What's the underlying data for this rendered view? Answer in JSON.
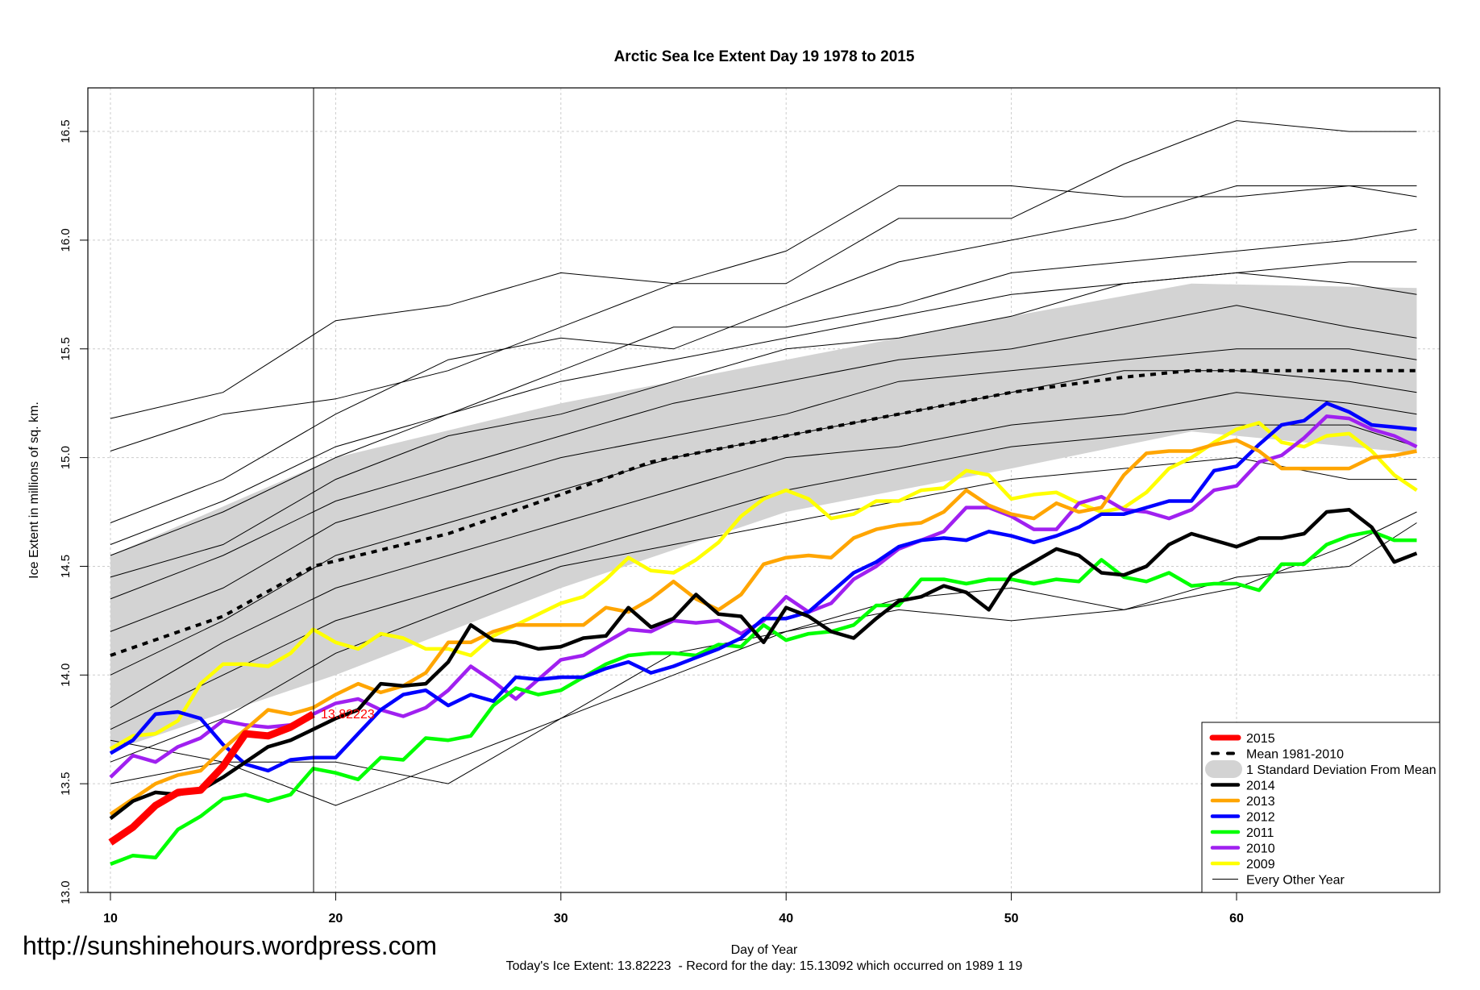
{
  "chart_data": {
    "type": "line",
    "title": "Arctic Sea Ice Extent Day 19 1978 to 2015",
    "xlabel": "Day of Year",
    "ylabel": "Ice Extent in millions of sq. km.",
    "subtitle": "Today's Ice Extent: 13.82223  - Record for the day: 15.13092 which occurred on 1989 1 19",
    "watermark": "http://sunshinehours.wordpress.com",
    "xlim": [
      9,
      69
    ],
    "ylim": [
      13.0,
      16.7
    ],
    "x_ticks": [
      "10",
      "20",
      "30",
      "40",
      "50",
      "60"
    ],
    "y_ticks": [
      "13.0",
      "13.5",
      "14.0",
      "14.5",
      "15.0",
      "15.5",
      "16.0",
      "16.5"
    ],
    "grid": true,
    "current_day": 19,
    "current_value_label": "13.82223",
    "legend_position": "bottom-right",
    "legend": [
      {
        "label": "2015",
        "color": "#ff0000",
        "style": "thick"
      },
      {
        "label": "Mean 1981-2010",
        "color": "#000000",
        "style": "dashed"
      },
      {
        "label": "1 Standard Deviation From Mean",
        "color": "#d3d3d3",
        "style": "band"
      },
      {
        "label": "2014",
        "color": "#000000",
        "style": "solid"
      },
      {
        "label": "2013",
        "color": "#ffa500",
        "style": "solid"
      },
      {
        "label": "2012",
        "color": "#0000ff",
        "style": "solid"
      },
      {
        "label": "2011",
        "color": "#00ff00",
        "style": "solid"
      },
      {
        "label": "2010",
        "color": "#a020f0",
        "style": "solid"
      },
      {
        "label": "2009",
        "color": "#ffff00",
        "style": "solid"
      },
      {
        "label": "Every Other Year",
        "color": "#000000",
        "style": "thin"
      }
    ],
    "mean": {
      "x": [
        10,
        15,
        19,
        25,
        30,
        34,
        40,
        45,
        50,
        55,
        58,
        68
      ],
      "values": [
        14.09,
        14.27,
        14.5,
        14.65,
        14.83,
        14.98,
        15.1,
        15.2,
        15.3,
        15.37,
        15.4,
        15.4
      ]
    },
    "sd_band": {
      "x": [
        10,
        20,
        30,
        40,
        50,
        58,
        68
      ],
      "upper": [
        14.55,
        15.0,
        15.25,
        15.45,
        15.65,
        15.8,
        15.78
      ],
      "lower": [
        13.65,
        14.0,
        14.4,
        14.75,
        14.95,
        15.12,
        15.02
      ]
    },
    "series": [
      {
        "name": "2015",
        "color": "#ff0000",
        "start": 10,
        "values": [
          13.23,
          13.3,
          13.4,
          13.46,
          13.47,
          13.58,
          13.73,
          13.72,
          13.76,
          13.82
        ]
      },
      {
        "name": "2014",
        "color": "#000000",
        "start": 10,
        "values": [
          13.34,
          13.42,
          13.46,
          13.45,
          13.47,
          13.53,
          13.6,
          13.67,
          13.7,
          13.75,
          13.8,
          13.84,
          13.96,
          13.95,
          13.96,
          14.06,
          14.23,
          14.16,
          14.15,
          14.12,
          14.13,
          14.17,
          14.18,
          14.31,
          14.22,
          14.26,
          14.37,
          14.28,
          14.27,
          14.15,
          14.31,
          14.27,
          14.2,
          14.17,
          14.26,
          14.34,
          14.36,
          14.41,
          14.38,
          14.3,
          14.46,
          14.52,
          14.58,
          14.55,
          14.47,
          14.46,
          14.5,
          14.6,
          14.65,
          14.62,
          14.59,
          14.63,
          14.63,
          14.65,
          14.75,
          14.76,
          14.68,
          14.52,
          14.56
        ]
      },
      {
        "name": "2013",
        "color": "#ffa500",
        "start": 10,
        "values": [
          13.36,
          13.43,
          13.5,
          13.54,
          13.56,
          13.66,
          13.75,
          13.84,
          13.82,
          13.85,
          13.91,
          13.96,
          13.92,
          13.95,
          14.01,
          14.15,
          14.15,
          14.2,
          14.23,
          14.23,
          14.23,
          14.23,
          14.31,
          14.29,
          14.35,
          14.43,
          14.35,
          14.3,
          14.37,
          14.51,
          14.54,
          14.55,
          14.54,
          14.63,
          14.67,
          14.69,
          14.7,
          14.75,
          14.85,
          14.78,
          14.74,
          14.72,
          14.79,
          14.75,
          14.77,
          14.92,
          15.02,
          15.03,
          15.03,
          15.06,
          15.08,
          15.03,
          14.95,
          14.95,
          14.95,
          14.95,
          15.0,
          15.01,
          15.03
        ]
      },
      {
        "name": "2012",
        "color": "#0000ff",
        "start": 10,
        "values": [
          13.64,
          13.7,
          13.82,
          13.83,
          13.8,
          13.68,
          13.59,
          13.56,
          13.61,
          13.62,
          13.62,
          13.73,
          13.84,
          13.91,
          13.93,
          13.86,
          13.91,
          13.88,
          13.99,
          13.98,
          13.99,
          13.99,
          14.03,
          14.06,
          14.01,
          14.04,
          14.08,
          14.12,
          14.17,
          14.26,
          14.26,
          14.29,
          14.38,
          14.47,
          14.52,
          14.59,
          14.62,
          14.63,
          14.62,
          14.66,
          14.64,
          14.61,
          14.64,
          14.68,
          14.74,
          14.74,
          14.77,
          14.8,
          14.8,
          14.94,
          14.96,
          15.06,
          15.15,
          15.17,
          15.25,
          15.21,
          15.15,
          15.14,
          15.13
        ]
      },
      {
        "name": "2011",
        "color": "#00ff00",
        "start": 10,
        "values": [
          13.13,
          13.17,
          13.16,
          13.29,
          13.35,
          13.43,
          13.45,
          13.42,
          13.45,
          13.57,
          13.55,
          13.52,
          13.62,
          13.61,
          13.71,
          13.7,
          13.72,
          13.86,
          13.94,
          13.91,
          13.93,
          13.99,
          14.05,
          14.09,
          14.1,
          14.1,
          14.09,
          14.14,
          14.13,
          14.23,
          14.16,
          14.19,
          14.2,
          14.23,
          14.32,
          14.32,
          14.44,
          14.44,
          14.42,
          14.44,
          14.44,
          14.42,
          14.44,
          14.43,
          14.53,
          14.45,
          14.43,
          14.47,
          14.41,
          14.42,
          14.42,
          14.39,
          14.51,
          14.51,
          14.6,
          14.64,
          14.66,
          14.62,
          14.62
        ]
      },
      {
        "name": "2010",
        "color": "#a020f0",
        "start": 10,
        "values": [
          13.53,
          13.63,
          13.6,
          13.67,
          13.71,
          13.79,
          13.77,
          13.76,
          13.77,
          13.82,
          13.87,
          13.89,
          13.84,
          13.81,
          13.85,
          13.93,
          14.04,
          13.97,
          13.89,
          13.98,
          14.07,
          14.09,
          14.15,
          14.21,
          14.2,
          14.25,
          14.24,
          14.25,
          14.19,
          14.25,
          14.36,
          14.29,
          14.33,
          14.44,
          14.5,
          14.58,
          14.62,
          14.66,
          14.77,
          14.77,
          14.73,
          14.67,
          14.67,
          14.79,
          14.82,
          14.76,
          14.75,
          14.72,
          14.76,
          14.85,
          14.87,
          14.98,
          15.01,
          15.09,
          15.19,
          15.18,
          15.13,
          15.1,
          15.05
        ]
      },
      {
        "name": "2009",
        "color": "#ffff00",
        "start": 10,
        "values": [
          13.66,
          13.72,
          13.73,
          13.79,
          13.96,
          14.05,
          14.05,
          14.04,
          14.1,
          14.21,
          14.15,
          14.12,
          14.19,
          14.17,
          14.12,
          14.12,
          14.09,
          14.18,
          14.23,
          14.28,
          14.33,
          14.36,
          14.44,
          14.54,
          14.48,
          14.47,
          14.53,
          14.61,
          14.73,
          14.81,
          14.85,
          14.81,
          14.72,
          14.74,
          14.8,
          14.8,
          14.85,
          14.86,
          14.94,
          14.92,
          14.81,
          14.83,
          14.84,
          14.79,
          14.75,
          14.77,
          14.84,
          14.95,
          15.0,
          15.07,
          15.13,
          15.16,
          15.07,
          15.05,
          15.1,
          15.11,
          15.03,
          14.92,
          14.85
        ]
      }
    ],
    "other_years": {
      "x": [
        10,
        15,
        20,
        25,
        30,
        35,
        40,
        45,
        50,
        55,
        60,
        65,
        68
      ],
      "series": [
        [
          15.18,
          15.3,
          15.63,
          15.7,
          15.85,
          15.8,
          15.8,
          16.1,
          16.1,
          16.35,
          16.55,
          16.5,
          16.5
        ],
        [
          15.03,
          15.2,
          15.27,
          15.4,
          15.6,
          15.8,
          15.95,
          16.25,
          16.25,
          16.2,
          16.2,
          16.25,
          16.2
        ],
        [
          14.7,
          14.9,
          15.2,
          15.45,
          15.55,
          15.5,
          15.7,
          15.9,
          16.0,
          16.1,
          16.25,
          16.25,
          16.25
        ],
        [
          14.55,
          14.75,
          15.0,
          15.2,
          15.4,
          15.6,
          15.6,
          15.7,
          15.85,
          15.9,
          15.95,
          16.0,
          16.05
        ],
        [
          14.6,
          14.8,
          15.05,
          15.2,
          15.35,
          15.45,
          15.55,
          15.65,
          15.75,
          15.8,
          15.85,
          15.8,
          15.75
        ],
        [
          14.45,
          14.6,
          14.9,
          15.1,
          15.2,
          15.35,
          15.5,
          15.55,
          15.65,
          15.8,
          15.85,
          15.9,
          15.9
        ],
        [
          14.35,
          14.55,
          14.8,
          14.95,
          15.1,
          15.25,
          15.35,
          15.45,
          15.5,
          15.6,
          15.7,
          15.6,
          15.55
        ],
        [
          14.2,
          14.4,
          14.7,
          14.85,
          15.0,
          15.1,
          15.2,
          15.35,
          15.4,
          15.45,
          15.5,
          15.5,
          15.45
        ],
        [
          14.0,
          14.25,
          14.55,
          14.7,
          14.85,
          15.0,
          15.1,
          15.2,
          15.3,
          15.4,
          15.4,
          15.35,
          15.3
        ],
        [
          13.85,
          14.15,
          14.4,
          14.55,
          14.7,
          14.85,
          15.0,
          15.05,
          15.15,
          15.2,
          15.3,
          15.25,
          15.2
        ],
        [
          13.75,
          14.0,
          14.25,
          14.4,
          14.55,
          14.7,
          14.85,
          14.95,
          15.05,
          15.1,
          15.15,
          15.15,
          15.05
        ],
        [
          13.6,
          13.8,
          14.1,
          14.3,
          14.5,
          14.6,
          14.7,
          14.8,
          14.9,
          14.95,
          15.0,
          14.9,
          14.9
        ],
        [
          13.5,
          13.6,
          13.6,
          13.5,
          13.8,
          14.0,
          14.2,
          14.35,
          14.4,
          14.3,
          14.45,
          14.5,
          14.7
        ],
        [
          13.7,
          13.6,
          13.4,
          13.6,
          13.8,
          14.1,
          14.2,
          14.3,
          14.25,
          14.3,
          14.4,
          14.6,
          14.75
        ]
      ]
    }
  }
}
